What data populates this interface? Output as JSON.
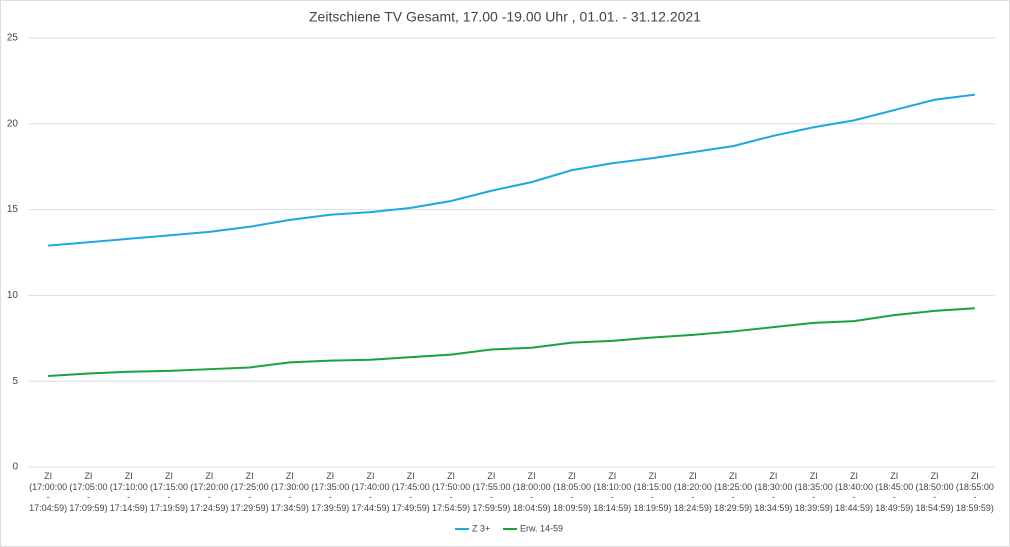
{
  "chart_data": {
    "type": "line",
    "title": "Zeitschiene TV Gesamt, 17.00 -19.00 Uhr , 01.01. - 31.12.2021",
    "categories": [
      "ZI\n(17:00:00\n-\n17:04:59)",
      "ZI\n(17:05:00\n-\n17:09:59)",
      "ZI\n(17:10:00\n-\n17:14:59)",
      "ZI\n(17:15:00\n-\n17:19:59)",
      "ZI\n(17:20:00\n-\n17:24:59)",
      "ZI\n(17:25:00\n-\n17:29:59)",
      "ZI\n(17:30:00\n-\n17:34:59)",
      "ZI\n(17:35:00\n-\n17:39:59)",
      "ZI\n(17:40:00\n-\n17:44:59)",
      "ZI\n(17:45:00\n-\n17:49:59)",
      "ZI\n(17:50:00\n-\n17:54:59)",
      "ZI\n(17:55:00\n-\n17:59:59)",
      "ZI\n(18:00:00\n-\n18:04:59)",
      "ZI\n(18:05:00\n-\n18:09:59)",
      "ZI\n(18:10:00\n-\n18:14:59)",
      "ZI\n(18:15:00\n-\n18:19:59)",
      "ZI\n(18:20:00\n-\n18:24:59)",
      "ZI\n(18:25:00\n-\n18:29:59)",
      "ZI\n(18:30:00\n-\n18:34:59)",
      "ZI\n(18:35:00\n-\n18:39:59)",
      "ZI\n(18:40:00\n-\n18:44:59)",
      "ZI\n(18:45:00\n-\n18:49:59)",
      "ZI\n(18:50:00\n-\n18:54:59)",
      "ZI\n(18:55:00\n-\n18:59:59)"
    ],
    "series": [
      {
        "name": "Z 3+",
        "color": "#1ea7e1",
        "values": [
          12.9,
          13.1,
          13.3,
          13.5,
          13.7,
          14.0,
          14.4,
          14.7,
          14.85,
          15.1,
          15.5,
          16.1,
          16.6,
          17.3,
          17.7,
          18.0,
          18.35,
          18.7,
          19.3,
          19.8,
          20.2,
          20.8,
          21.4,
          21.7
        ]
      },
      {
        "name": "Erw. 14-59",
        "color": "#1aa33a",
        "values": [
          5.3,
          5.45,
          5.55,
          5.6,
          5.7,
          5.8,
          6.1,
          6.2,
          6.25,
          6.4,
          6.55,
          6.85,
          6.95,
          7.25,
          7.35,
          7.55,
          7.7,
          7.9,
          8.15,
          8.4,
          8.5,
          8.85,
          9.1,
          9.25
        ]
      }
    ],
    "ylim": [
      0,
      25
    ],
    "yticks": [
      0,
      5,
      10,
      15,
      20,
      25
    ],
    "grid": true
  }
}
